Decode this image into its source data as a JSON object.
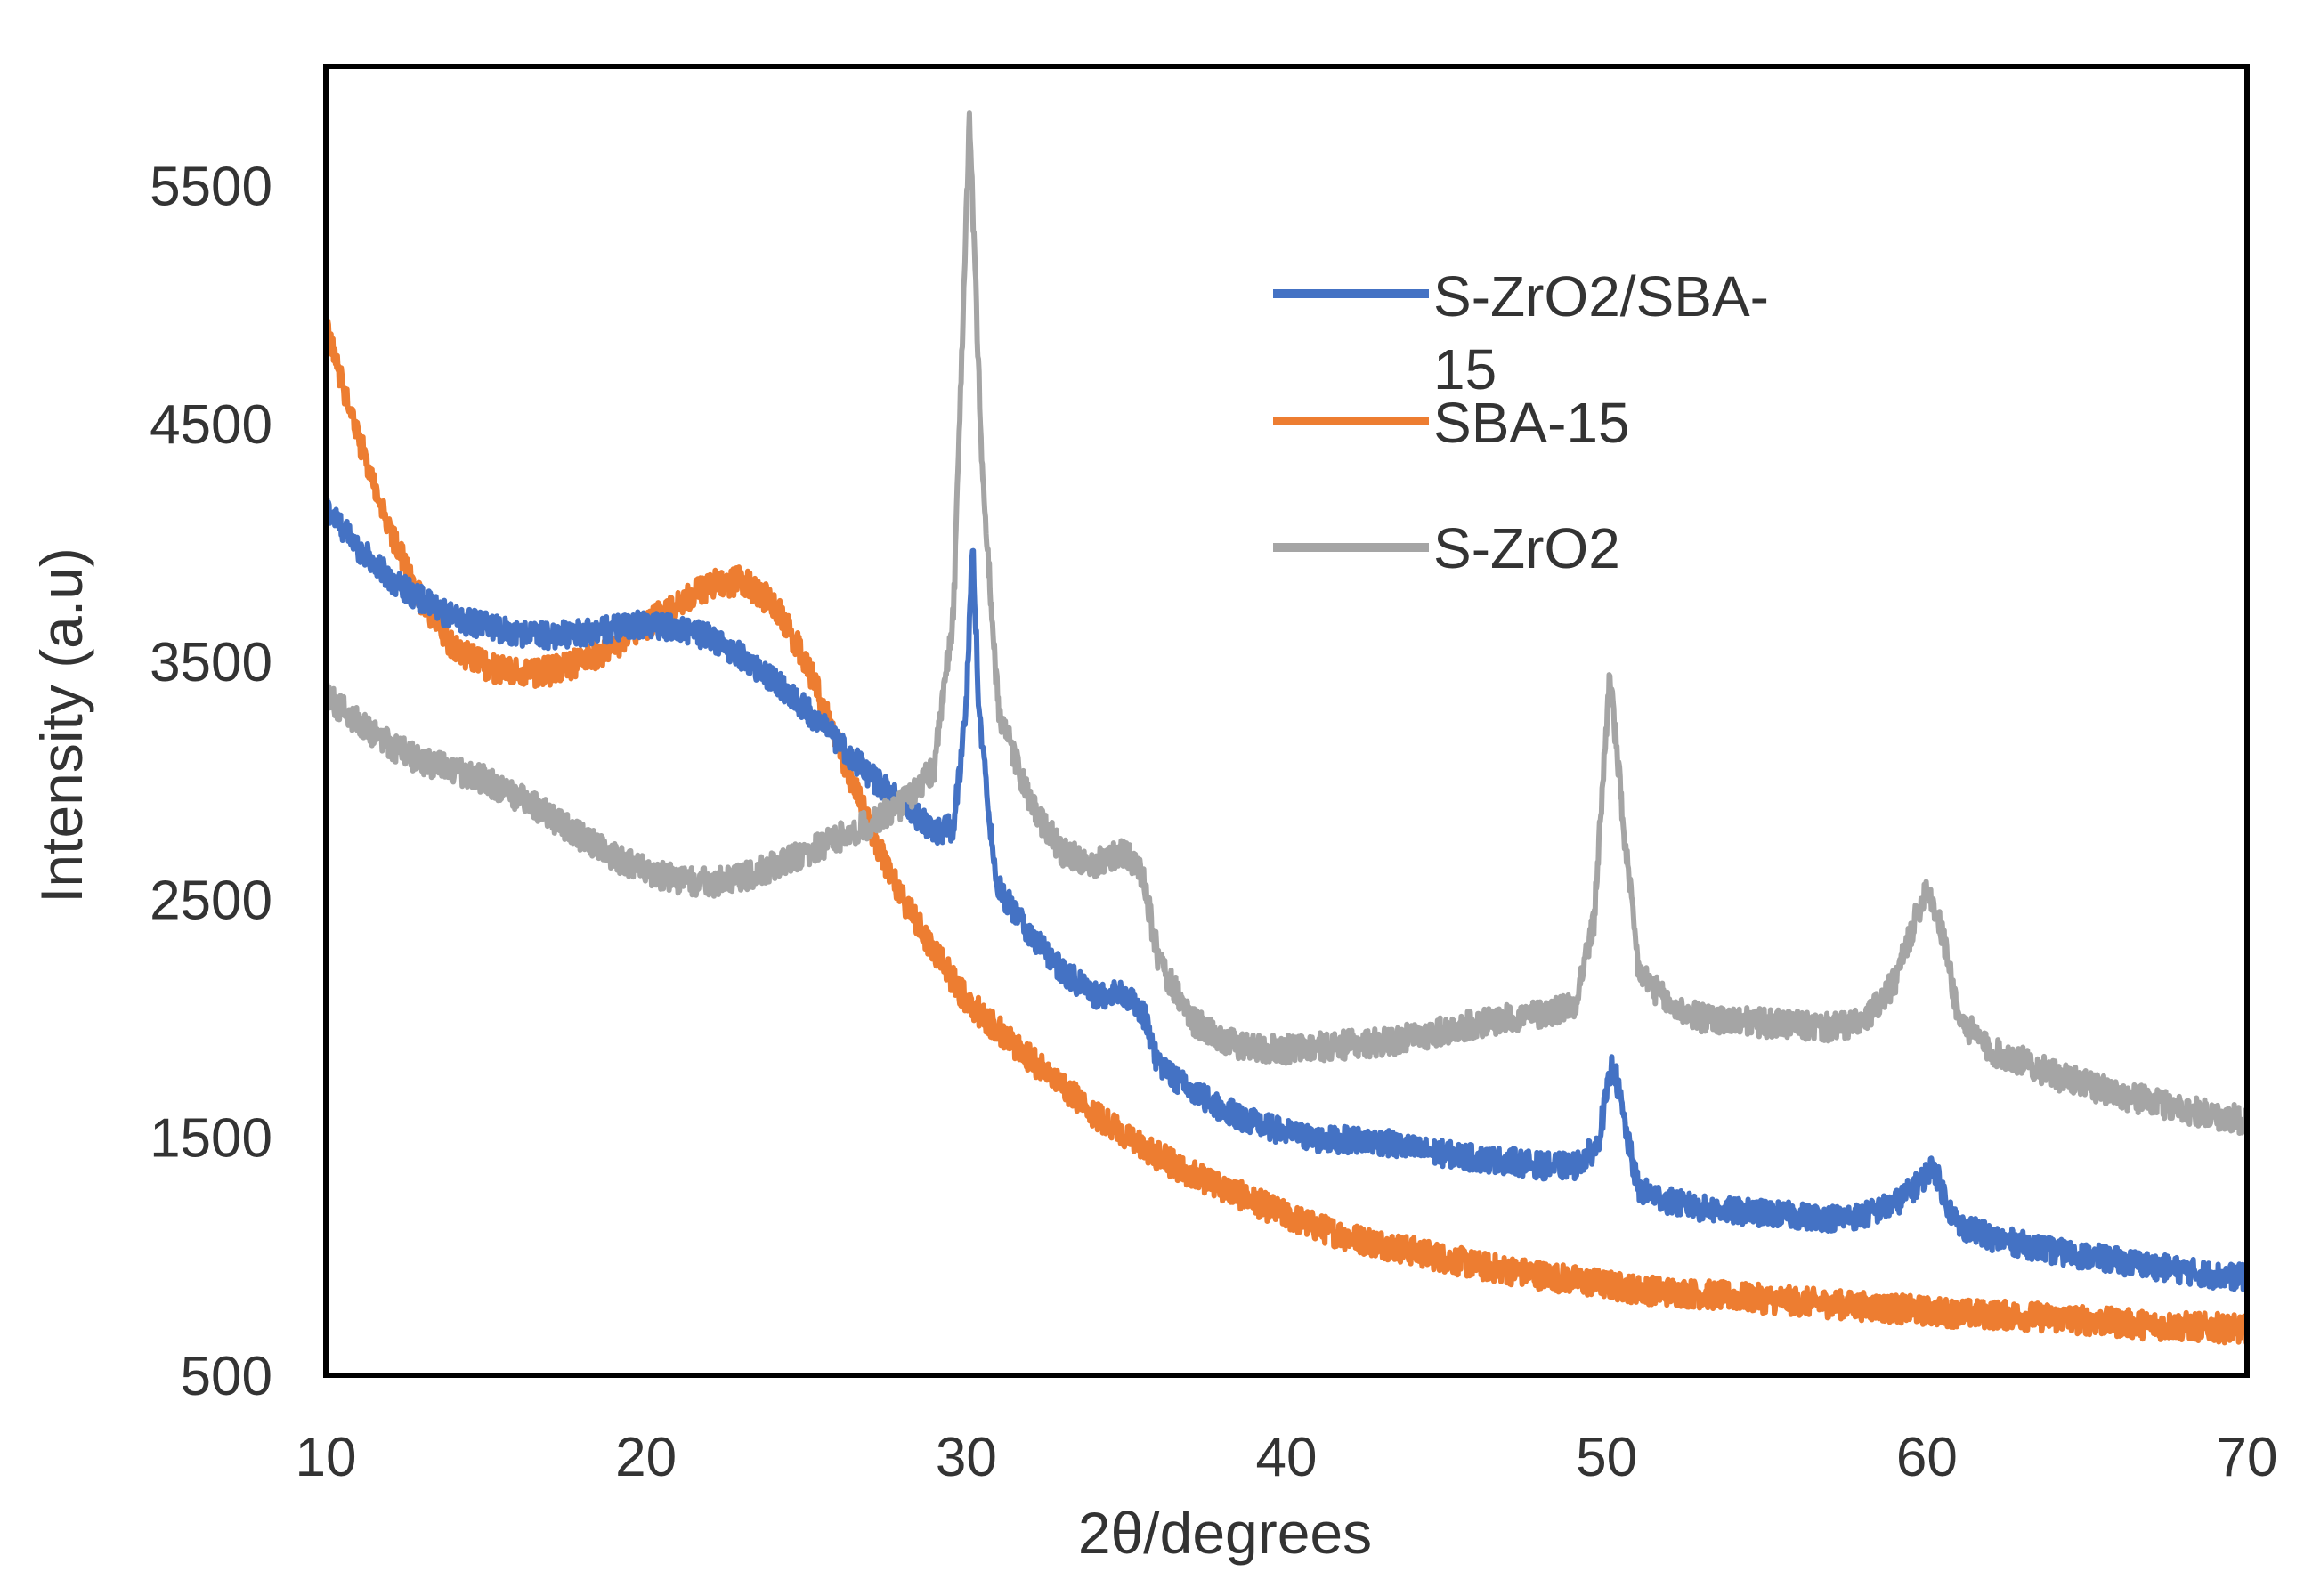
{
  "chart_data": {
    "type": "line",
    "title": "",
    "xlabel": "2θ/degrees",
    "ylabel": "Intensity (a.u)",
    "xlim": [
      10,
      70
    ],
    "ylim": [
      500,
      6000
    ],
    "x_ticks": [
      10,
      20,
      30,
      40,
      50,
      60,
      70
    ],
    "y_ticks": [
      500,
      1500,
      2500,
      3500,
      4500,
      5500
    ],
    "grid": false,
    "legend_position": "top-right",
    "series": [
      {
        "name": "S-ZrO2/SBA-15",
        "legend_lines": [
          "S-ZrO2/SBA-",
          "15"
        ],
        "color": "#4472C4",
        "noise": 55,
        "points": [
          [
            10,
            4150
          ],
          [
            11,
            3980
          ],
          [
            12,
            3850
          ],
          [
            13,
            3760
          ],
          [
            14,
            3680
          ],
          [
            15,
            3650
          ],
          [
            16,
            3620
          ],
          [
            17,
            3610
          ],
          [
            18,
            3620
          ],
          [
            19,
            3640
          ],
          [
            20,
            3660
          ],
          [
            21,
            3640
          ],
          [
            22,
            3600
          ],
          [
            23,
            3520
          ],
          [
            24,
            3420
          ],
          [
            25,
            3300
          ],
          [
            26,
            3160
          ],
          [
            27,
            3020
          ],
          [
            28,
            2900
          ],
          [
            29,
            2790
          ],
          [
            29.6,
            2800
          ],
          [
            30,
            3300
          ],
          [
            30.2,
            4000
          ],
          [
            30.4,
            3300
          ],
          [
            30.8,
            2750
          ],
          [
            31,
            2550
          ],
          [
            32,
            2350
          ],
          [
            33,
            2200
          ],
          [
            34,
            2100
          ],
          [
            35,
            2100
          ],
          [
            35.6,
            2000
          ],
          [
            36,
            1800
          ],
          [
            37,
            1700
          ],
          [
            38,
            1620
          ],
          [
            39,
            1560
          ],
          [
            40,
            1520
          ],
          [
            41,
            1490
          ],
          [
            42,
            1490
          ],
          [
            43,
            1480
          ],
          [
            44,
            1450
          ],
          [
            45,
            1430
          ],
          [
            46,
            1410
          ],
          [
            47,
            1400
          ],
          [
            48,
            1380
          ],
          [
            49,
            1380
          ],
          [
            49.7,
            1460
          ],
          [
            50.2,
            1820
          ],
          [
            50.7,
            1460
          ],
          [
            51,
            1280
          ],
          [
            52,
            1230
          ],
          [
            53,
            1200
          ],
          [
            54,
            1190
          ],
          [
            55,
            1180
          ],
          [
            56,
            1170
          ],
          [
            57,
            1160
          ],
          [
            58,
            1170
          ],
          [
            59,
            1220
          ],
          [
            59.7,
            1300
          ],
          [
            60.2,
            1380
          ],
          [
            60.7,
            1200
          ],
          [
            61,
            1130
          ],
          [
            62,
            1080
          ],
          [
            63,
            1050
          ],
          [
            64,
            1020
          ],
          [
            65,
            1000
          ],
          [
            66,
            980
          ],
          [
            67,
            960
          ],
          [
            68,
            940
          ],
          [
            69,
            920
          ],
          [
            70,
            910
          ]
        ]
      },
      {
        "name": "SBA-15",
        "legend_lines": [
          "SBA-15"
        ],
        "color": "#ED7D31",
        "noise": 60,
        "points": [
          [
            10,
            4900
          ],
          [
            11,
            4450
          ],
          [
            12,
            4050
          ],
          [
            13,
            3750
          ],
          [
            14,
            3560
          ],
          [
            15,
            3480
          ],
          [
            16,
            3450
          ],
          [
            17,
            3460
          ],
          [
            18,
            3500
          ],
          [
            19,
            3560
          ],
          [
            20,
            3650
          ],
          [
            21,
            3750
          ],
          [
            22,
            3820
          ],
          [
            23,
            3840
          ],
          [
            24,
            3740
          ],
          [
            25,
            3500
          ],
          [
            26,
            3150
          ],
          [
            27,
            2800
          ],
          [
            28,
            2500
          ],
          [
            29,
            2280
          ],
          [
            30,
            2080
          ],
          [
            31,
            1950
          ],
          [
            32,
            1830
          ],
          [
            33,
            1720
          ],
          [
            34,
            1600
          ],
          [
            35,
            1500
          ],
          [
            36,
            1420
          ],
          [
            37,
            1350
          ],
          [
            38,
            1290
          ],
          [
            39,
            1230
          ],
          [
            40,
            1170
          ],
          [
            41,
            1120
          ],
          [
            42,
            1080
          ],
          [
            43,
            1050
          ],
          [
            44,
            1020
          ],
          [
            45,
            990
          ],
          [
            46,
            960
          ],
          [
            47,
            940
          ],
          [
            48,
            920
          ],
          [
            49,
            900
          ],
          [
            50,
            880
          ],
          [
            51,
            860
          ],
          [
            52,
            850
          ],
          [
            53,
            840
          ],
          [
            54,
            830
          ],
          [
            55,
            820
          ],
          [
            56,
            810
          ],
          [
            57,
            800
          ],
          [
            58,
            790
          ],
          [
            59,
            780
          ],
          [
            60,
            770
          ],
          [
            61,
            760
          ],
          [
            62,
            755
          ],
          [
            63,
            750
          ],
          [
            64,
            740
          ],
          [
            65,
            730
          ],
          [
            66,
            720
          ],
          [
            67,
            710
          ],
          [
            68,
            705
          ],
          [
            69,
            700
          ],
          [
            70,
            690
          ]
        ]
      },
      {
        "name": "S-ZrO2",
        "legend_lines": [
          "S-ZrO2"
        ],
        "color": "#A5A5A5",
        "noise": 60,
        "points": [
          [
            10,
            3350
          ],
          [
            11,
            3250
          ],
          [
            12,
            3150
          ],
          [
            13,
            3080
          ],
          [
            14,
            3040
          ],
          [
            15,
            3000
          ],
          [
            16,
            2930
          ],
          [
            17,
            2850
          ],
          [
            18,
            2760
          ],
          [
            19,
            2680
          ],
          [
            20,
            2620
          ],
          [
            21,
            2580
          ],
          [
            22,
            2570
          ],
          [
            23,
            2590
          ],
          [
            24,
            2640
          ],
          [
            25,
            2700
          ],
          [
            26,
            2760
          ],
          [
            27,
            2820
          ],
          [
            28,
            2900
          ],
          [
            29,
            3050
          ],
          [
            29.6,
            3700
          ],
          [
            30.1,
            5800
          ],
          [
            30.5,
            4300
          ],
          [
            31,
            3300
          ],
          [
            32,
            2900
          ],
          [
            33,
            2700
          ],
          [
            34,
            2650
          ],
          [
            35,
            2700
          ],
          [
            35.5,
            2600
          ],
          [
            36,
            2250
          ],
          [
            37,
            2000
          ],
          [
            38,
            1900
          ],
          [
            39,
            1880
          ],
          [
            40,
            1870
          ],
          [
            41,
            1880
          ],
          [
            42,
            1890
          ],
          [
            43,
            1900
          ],
          [
            44,
            1920
          ],
          [
            45,
            1950
          ],
          [
            46,
            1980
          ],
          [
            47,
            2000
          ],
          [
            48,
            2020
          ],
          [
            49,
            2060
          ],
          [
            49.6,
            2400
          ],
          [
            50.1,
            3450
          ],
          [
            50.6,
            2700
          ],
          [
            51,
            2200
          ],
          [
            52,
            2050
          ],
          [
            53,
            2000
          ],
          [
            54,
            1990
          ],
          [
            55,
            1980
          ],
          [
            56,
            1970
          ],
          [
            57,
            1960
          ],
          [
            58,
            1980
          ],
          [
            59,
            2150
          ],
          [
            59.6,
            2400
          ],
          [
            60,
            2560
          ],
          [
            60.5,
            2350
          ],
          [
            61,
            2000
          ],
          [
            62,
            1860
          ],
          [
            63,
            1820
          ],
          [
            64,
            1760
          ],
          [
            65,
            1720
          ],
          [
            66,
            1680
          ],
          [
            67,
            1650
          ],
          [
            68,
            1620
          ],
          [
            69,
            1590
          ],
          [
            70,
            1570
          ]
        ]
      }
    ]
  }
}
